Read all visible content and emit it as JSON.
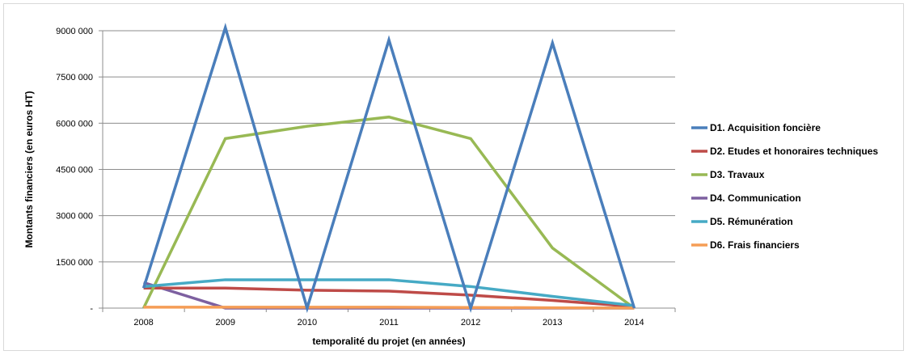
{
  "chart_data": {
    "type": "line",
    "title": "",
    "xlabel": "temporalité du projet (en années)",
    "ylabel": "Montants financiers (en euros HT)",
    "categories": [
      "2008",
      "2009",
      "2010",
      "2011",
      "2012",
      "2013",
      "2014"
    ],
    "ylim": [
      0,
      9000000
    ],
    "yticks": [
      0,
      1500000,
      3000000,
      4500000,
      6000000,
      7500000,
      9000000
    ],
    "ytick_labels": [
      "-",
      "1500 000",
      "3000 000",
      "4500 000",
      "6000 000",
      "7500 000",
      "9000 000"
    ],
    "grid": true,
    "legend_position": "right",
    "series": [
      {
        "name": "D1. Acquisition foncière",
        "color": "#4a7ebb",
        "values": [
          650000,
          9100000,
          0,
          8700000,
          0,
          8600000,
          0
        ]
      },
      {
        "name": "D2. Etudes et honoraires techniques",
        "color": "#be4b48",
        "values": [
          650000,
          650000,
          580000,
          550000,
          420000,
          250000,
          50000
        ]
      },
      {
        "name": "D3. Travaux",
        "color": "#98b954",
        "values": [
          0,
          5500000,
          5900000,
          6200000,
          5500000,
          1950000,
          0
        ]
      },
      {
        "name": "D4. Communication",
        "color": "#7d60a0",
        "values": [
          830000,
          0,
          0,
          0,
          0,
          0,
          0
        ]
      },
      {
        "name": "D5. Rémunération",
        "color": "#46aac5",
        "values": [
          700000,
          920000,
          920000,
          920000,
          700000,
          380000,
          80000
        ]
      },
      {
        "name": "D6. Frais financiers",
        "color": "#f59d56",
        "values": [
          30000,
          30000,
          30000,
          30000,
          20000,
          10000,
          0
        ]
      }
    ]
  }
}
